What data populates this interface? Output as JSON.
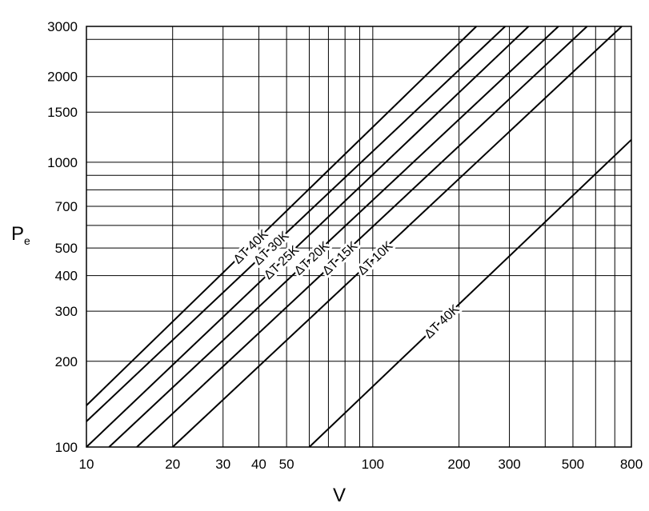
{
  "chart_data": {
    "type": "line",
    "title": "",
    "xlabel": "V",
    "ylabel": "P",
    "ylabel_subscript": "e",
    "xscale": "log",
    "yscale": "log",
    "xlim": [
      10,
      800
    ],
    "ylim": [
      100,
      3000
    ],
    "grid": true,
    "x_major_ticks": [
      10,
      20,
      30,
      40,
      50,
      100,
      200,
      300,
      500,
      800
    ],
    "x_tick_labels": [
      "10",
      "20",
      "30",
      "40",
      "50",
      "100",
      "200",
      "300",
      "500",
      "800"
    ],
    "x_grid": [
      20,
      30,
      40,
      50,
      60,
      70,
      80,
      90,
      100,
      200,
      300,
      400,
      500,
      600,
      700
    ],
    "y_major_ticks": [
      100,
      200,
      300,
      400,
      500,
      700,
      1000,
      1500,
      2000,
      3000
    ],
    "y_tick_labels": [
      "100",
      "200",
      "300",
      "400",
      "500",
      "700",
      "1000",
      "1500",
      "2000",
      "3000"
    ],
    "y_grid": [
      200,
      300,
      400,
      500,
      600,
      700,
      800,
      900,
      1000,
      1500,
      2000,
      2700
    ],
    "series": [
      {
        "name": "ΔT 40K",
        "x": [
          10,
          230
        ],
        "y": [
          140,
          3000
        ]
      },
      {
        "name": "ΔT 30K",
        "x": [
          10,
          290
        ],
        "y": [
          123,
          3000
        ]
      },
      {
        "name": "ΔT 25K",
        "x": [
          10,
          350
        ],
        "y": [
          100,
          3000
        ]
      },
      {
        "name": "ΔT 20K",
        "x": [
          12,
          445
        ],
        "y": [
          100,
          3000
        ]
      },
      {
        "name": "ΔT 15K",
        "x": [
          15,
          560
        ],
        "y": [
          100,
          3000
        ]
      },
      {
        "name": "ΔT 10K",
        "x": [
          20,
          740
        ],
        "y": [
          100,
          3000
        ]
      },
      {
        "name": "ΔT 40K",
        "x": [
          60,
          800
        ],
        "y": [
          100,
          1200
        ]
      }
    ]
  }
}
